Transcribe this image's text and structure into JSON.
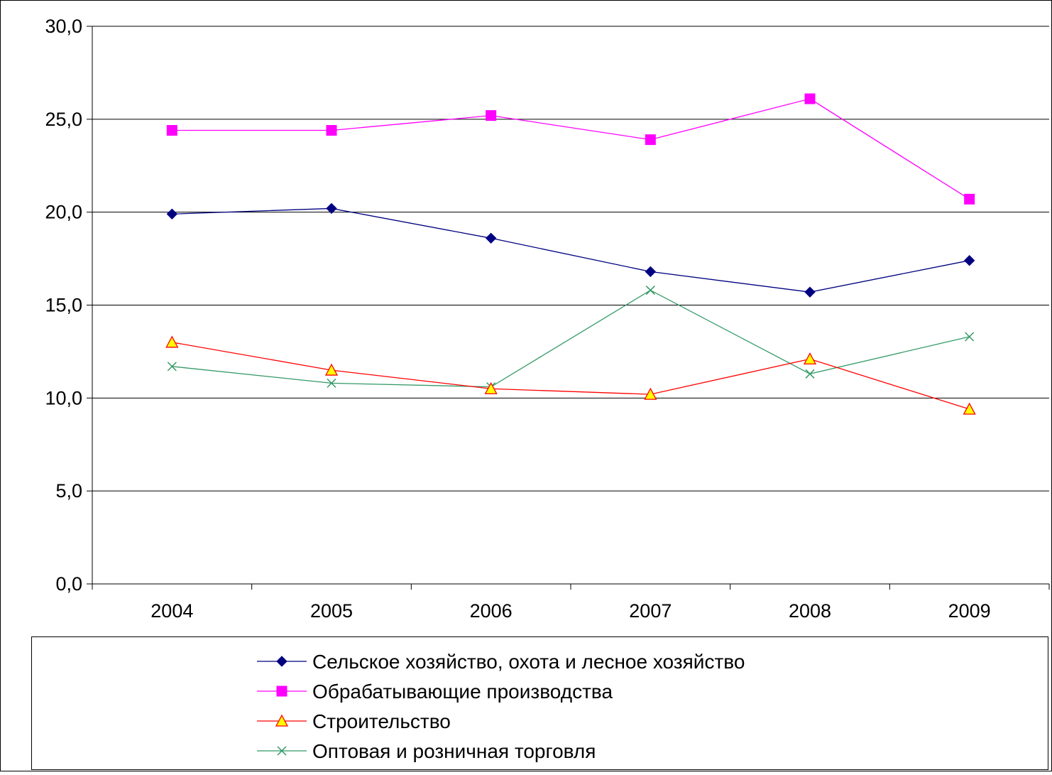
{
  "chart_data": {
    "type": "line",
    "title": "",
    "xlabel": "",
    "ylabel": "",
    "categories": [
      "2004",
      "2005",
      "2006",
      "2007",
      "2008",
      "2009"
    ],
    "ylim": [
      0,
      30
    ],
    "yticks": [
      0,
      5,
      10,
      15,
      20,
      25,
      30
    ],
    "ytick_labels": [
      "0,0",
      "5,0",
      "10,0",
      "15,0",
      "20,0",
      "25,0",
      "30,0"
    ],
    "grid": true,
    "legend_position": "bottom",
    "series": [
      {
        "name": "Сельское хозяйство, охота и лесное хозяйство",
        "values": [
          19.9,
          20.2,
          18.6,
          16.8,
          15.7,
          17.4
        ],
        "color": "#000080",
        "marker": "diamond"
      },
      {
        "name": "Обрабатывающие производства",
        "values": [
          24.4,
          24.4,
          25.2,
          23.9,
          26.1,
          20.7
        ],
        "color": "#ff00ff",
        "marker": "square"
      },
      {
        "name": "Строительство",
        "values": [
          13.0,
          11.5,
          10.5,
          10.2,
          12.1,
          9.4
        ],
        "color": "#ff0000",
        "marker": "triangle",
        "marker_fill": "#ffff00"
      },
      {
        "name": "Оптовая  и розничная торговля",
        "values": [
          11.7,
          10.8,
          10.6,
          15.8,
          11.3,
          13.3
        ],
        "color": "#339966",
        "marker": "x"
      }
    ]
  }
}
